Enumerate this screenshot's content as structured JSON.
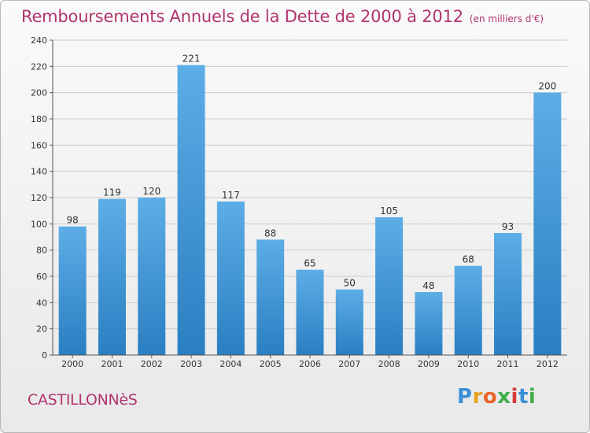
{
  "chart_data": {
    "type": "bar",
    "title": "Remboursements Annuels de la Dette de 2000 à 2012",
    "subtitle": "(en milliers d'€)",
    "xlabel": "",
    "ylabel": "",
    "categories": [
      "2000",
      "2001",
      "2002",
      "2003",
      "2004",
      "2005",
      "2006",
      "2007",
      "2008",
      "2009",
      "2010",
      "2011",
      "2012"
    ],
    "values": [
      98,
      119,
      120,
      221,
      117,
      88,
      65,
      50,
      105,
      48,
      68,
      93,
      200
    ],
    "ylim": [
      0,
      240
    ],
    "yticks": [
      0,
      20,
      40,
      60,
      80,
      100,
      120,
      140,
      160,
      180,
      200,
      220,
      240
    ],
    "grid": true,
    "legend": "none",
    "colors": {
      "bar_light": "#5dade6",
      "bar_dark": "#2a7fc2",
      "title": "#b0356e",
      "grid": "#cccccc"
    }
  },
  "footer": {
    "commune": "CASTILLONNèS",
    "brand": "Proxiti",
    "brand_colors": [
      "#3b8fd6",
      "#e8a020",
      "#e8642a",
      "#3fae49",
      "#d63c3c",
      "#3b8fd6",
      "#3fae49"
    ]
  }
}
